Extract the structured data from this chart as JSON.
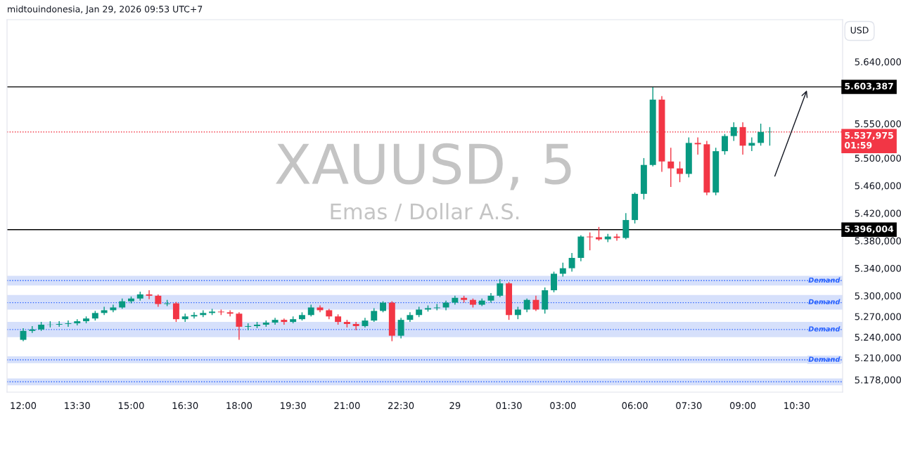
{
  "chart_data": {
    "type": "candlestick",
    "title": "midtouindonesia, Jan 29, 2026 09:53 UTC+7",
    "ylabel": "USD",
    "annotations": [
      "XAUUSD, 5",
      "Emas / Dollar A.S."
    ],
    "categories": [
      "12:00",
      null,
      null,
      null,
      null,
      null,
      "13:30",
      null,
      null,
      null,
      null,
      null,
      "15:00",
      null,
      null,
      null,
      null,
      null,
      "16:30",
      null,
      null,
      null,
      null,
      null,
      "18:00",
      null,
      null,
      null,
      null,
      null,
      "19:30",
      null,
      null,
      null,
      null,
      null,
      "21:00",
      null,
      null,
      null,
      null,
      null,
      "22:30",
      null,
      null,
      null,
      null,
      null,
      "29",
      null,
      null,
      null,
      null,
      null,
      "01:30",
      null,
      null,
      null,
      null,
      null,
      "03:00",
      null,
      null,
      null,
      null,
      null,
      null,
      null,
      "06:00",
      null,
      null,
      null,
      null,
      null,
      "07:30",
      null,
      null,
      null,
      null,
      null,
      "09:00",
      null,
      null,
      null,
      null,
      null,
      "10:30",
      null,
      null,
      null,
      null,
      null
    ],
    "ohlc": [
      [
        5236,
        5253,
        5234,
        5249
      ],
      [
        5249,
        5256,
        5246,
        5251
      ],
      [
        5251,
        5262,
        5249,
        5258
      ],
      [
        5258,
        5263,
        5254,
        5258
      ],
      [
        5258,
        5263,
        5255,
        5259
      ],
      [
        5259,
        5264,
        5255,
        5260
      ],
      [
        5260,
        5266,
        5257,
        5263
      ],
      [
        5263,
        5270,
        5260,
        5267
      ],
      [
        5267,
        5278,
        5264,
        5275
      ],
      [
        5275,
        5284,
        5272,
        5279
      ],
      [
        5279,
        5287,
        5276,
        5283
      ],
      [
        5283,
        5296,
        5281,
        5292
      ],
      [
        5292,
        5299,
        5289,
        5296
      ],
      [
        5296,
        5306,
        5293,
        5302
      ],
      [
        5302,
        5308,
        5295,
        5300
      ],
      [
        5300,
        5302,
        5284,
        5288
      ],
      [
        5288,
        5294,
        5285,
        5289
      ],
      [
        5289,
        5291,
        5262,
        5266
      ],
      [
        5266,
        5274,
        5262,
        5270
      ],
      [
        5270,
        5276,
        5267,
        5272
      ],
      [
        5272,
        5279,
        5269,
        5275
      ],
      [
        5275,
        5281,
        5272,
        5277
      ],
      [
        5277,
        5280,
        5272,
        5276
      ],
      [
        5276,
        5279,
        5270,
        5274
      ],
      [
        5274,
        5276,
        5236,
        5255
      ],
      [
        5255,
        5260,
        5250,
        5256
      ],
      [
        5256,
        5262,
        5253,
        5258
      ],
      [
        5258,
        5264,
        5255,
        5261
      ],
      [
        5261,
        5268,
        5258,
        5265
      ],
      [
        5265,
        5267,
        5258,
        5262
      ],
      [
        5262,
        5270,
        5260,
        5266
      ],
      [
        5266,
        5276,
        5264,
        5272
      ],
      [
        5272,
        5287,
        5270,
        5283
      ],
      [
        5283,
        5286,
        5276,
        5279
      ],
      [
        5279,
        5281,
        5266,
        5270
      ],
      [
        5270,
        5273,
        5258,
        5262
      ],
      [
        5262,
        5265,
        5254,
        5259
      ],
      [
        5259,
        5262,
        5250,
        5256
      ],
      [
        5256,
        5268,
        5254,
        5264
      ],
      [
        5264,
        5282,
        5262,
        5278
      ],
      [
        5278,
        5292,
        5276,
        5290
      ],
      [
        5290,
        5292,
        5234,
        5242
      ],
      [
        5242,
        5268,
        5238,
        5265
      ],
      [
        5265,
        5276,
        5262,
        5272
      ],
      [
        5272,
        5284,
        5269,
        5280
      ],
      [
        5280,
        5286,
        5277,
        5282
      ],
      [
        5282,
        5288,
        5279,
        5283
      ],
      [
        5283,
        5293,
        5279,
        5290
      ],
      [
        5290,
        5300,
        5287,
        5297
      ],
      [
        5297,
        5300,
        5290,
        5294
      ],
      [
        5294,
        5296,
        5283,
        5287
      ],
      [
        5287,
        5296,
        5285,
        5293
      ],
      [
        5293,
        5304,
        5290,
        5300
      ],
      [
        5300,
        5324,
        5298,
        5318
      ],
      [
        5318,
        5320,
        5265,
        5272
      ],
      [
        5272,
        5284,
        5266,
        5280
      ],
      [
        5280,
        5296,
        5276,
        5294
      ],
      [
        5294,
        5300,
        5278,
        5280
      ],
      [
        5280,
        5312,
        5274,
        5308
      ],
      [
        5308,
        5335,
        5305,
        5332
      ],
      [
        5332,
        5348,
        5328,
        5340
      ],
      [
        5340,
        5362,
        5335,
        5355
      ],
      [
        5355,
        5388,
        5350,
        5386
      ],
      [
        5386,
        5392,
        5366,
        5385
      ],
      [
        5385,
        5400,
        5380,
        5382
      ],
      [
        5382,
        5390,
        5378,
        5386
      ],
      [
        5386,
        5390,
        5380,
        5384
      ],
      [
        5384,
        5420,
        5382,
        5410
      ],
      [
        5410,
        5450,
        5405,
        5448
      ],
      [
        5448,
        5500,
        5440,
        5490
      ],
      [
        5490,
        5603,
        5488,
        5585
      ],
      [
        5585,
        5590,
        5480,
        5495
      ],
      [
        5495,
        5515,
        5458,
        5485
      ],
      [
        5485,
        5495,
        5465,
        5477
      ],
      [
        5477,
        5530,
        5472,
        5522
      ],
      [
        5522,
        5530,
        5505,
        5520
      ],
      [
        5520,
        5525,
        5446,
        5450
      ],
      [
        5450,
        5515,
        5446,
        5510
      ],
      [
        5510,
        5535,
        5505,
        5532
      ],
      [
        5532,
        5552,
        5525,
        5545
      ],
      [
        5545,
        5552,
        5505,
        5518
      ],
      [
        5518,
        5530,
        5510,
        5522
      ],
      [
        5522,
        5550,
        5518,
        5538
      ],
      [
        5538,
        5545,
        5518,
        5538
      ],
      null,
      null,
      null,
      null,
      null,
      null,
      null,
      null
    ],
    "colors": [
      "#089981",
      "#089981",
      "#089981",
      "#089981",
      "#089981",
      "#089981",
      "#089981",
      "#089981",
      "#089981",
      "#089981",
      "#089981",
      "#089981",
      "#089981",
      "#089981",
      "#f23645",
      "#f23645",
      "#089981",
      "#f23645",
      "#089981",
      "#089981",
      "#089981",
      "#089981",
      "#f23645",
      "#f23645",
      "#f23645",
      "#089981",
      "#089981",
      "#089981",
      "#089981",
      "#f23645",
      "#089981",
      "#089981",
      "#089981",
      "#f23645",
      "#f23645",
      "#f23645",
      "#f23645",
      "#f23645",
      "#089981",
      "#089981",
      "#089981",
      "#f23645",
      "#089981",
      "#089981",
      "#089981",
      "#089981",
      "#089981",
      "#089981",
      "#089981",
      "#f23645",
      "#f23645",
      "#089981",
      "#089981",
      "#089981",
      "#f23645",
      "#089981",
      "#089981",
      "#f23645",
      "#089981",
      "#089981",
      "#089981",
      "#089981",
      "#089981",
      "#f23645",
      "#f23645",
      "#089981",
      "#f23645",
      "#089981",
      "#089981",
      "#089981",
      "#089981",
      "#f23645",
      "#f23645",
      "#f23645",
      "#089981",
      "#f23645",
      "#f23645",
      "#089981",
      "#089981",
      "#089981",
      "#f23645",
      "#089981",
      "#089981",
      "#089981",
      null,
      null,
      null,
      null,
      null,
      null,
      null,
      null
    ],
    "ylim": [
      5160,
      5701
    ],
    "yticks": [
      {
        "value": 5178,
        "label": "5.178,000"
      },
      {
        "value": 5210,
        "label": "5.210,000"
      },
      {
        "value": 5240,
        "label": "5.240,000"
      },
      {
        "value": 5270,
        "label": "5.270,000"
      },
      {
        "value": 5300,
        "label": "5.300,000"
      },
      {
        "value": 5340,
        "label": "5.340,000"
      },
      {
        "value": 5380,
        "label": "5.380,000"
      },
      {
        "value": 5420,
        "label": "5.420,000"
      },
      {
        "value": 5460,
        "label": "5.460,000"
      },
      {
        "value": 5500,
        "label": "5.500,000"
      },
      {
        "value": 5550,
        "label": "5.550,000"
      },
      {
        "value": 5640,
        "label": "5.640,000"
      }
    ],
    "ref_lines": [
      {
        "axis": "y",
        "value": 5603.387,
        "label": "5.603,387",
        "color": "#000000",
        "line_style": "solid"
      },
      {
        "axis": "y",
        "value": 5396.004,
        "label": "5.396,004",
        "color": "#000000",
        "line_style": "solid"
      },
      {
        "axis": "y",
        "value": 5537.975,
        "label": "5.537,975\n01:59",
        "color": "#f23645",
        "line_style": "dotted"
      },
      {
        "axis": "y",
        "value": 5322,
        "color": "#2962ff",
        "line_style": "dotted"
      },
      {
        "axis": "y",
        "value": 5290,
        "color": "#2962ff",
        "line_style": "dotted"
      },
      {
        "axis": "y",
        "value": 5251,
        "color": "#2962ff",
        "line_style": "dotted"
      },
      {
        "axis": "y",
        "value": 5207,
        "color": "#2962ff",
        "line_style": "dotted"
      },
      {
        "axis": "y",
        "value": 5175,
        "color": "#2962ff",
        "line_style": "dotted"
      }
    ],
    "bands": [
      {
        "axis": "y",
        "from": 5315,
        "to": 5329,
        "label": "Demand",
        "color": "#d6e0fb"
      },
      {
        "axis": "y",
        "from": 5280,
        "to": 5301,
        "label": "Demand",
        "color": "#d6e0fb"
      },
      {
        "axis": "y",
        "from": 5240,
        "to": 5262,
        "label": "Demand",
        "color": "#d6e0fb"
      },
      {
        "axis": "y",
        "from": 5202,
        "to": 5212,
        "label": "Demand",
        "color": "#d6e0fb"
      },
      {
        "axis": "y",
        "from": 5170,
        "to": 5180,
        "color": "#d6e0fb"
      }
    ],
    "grid": false
  }
}
